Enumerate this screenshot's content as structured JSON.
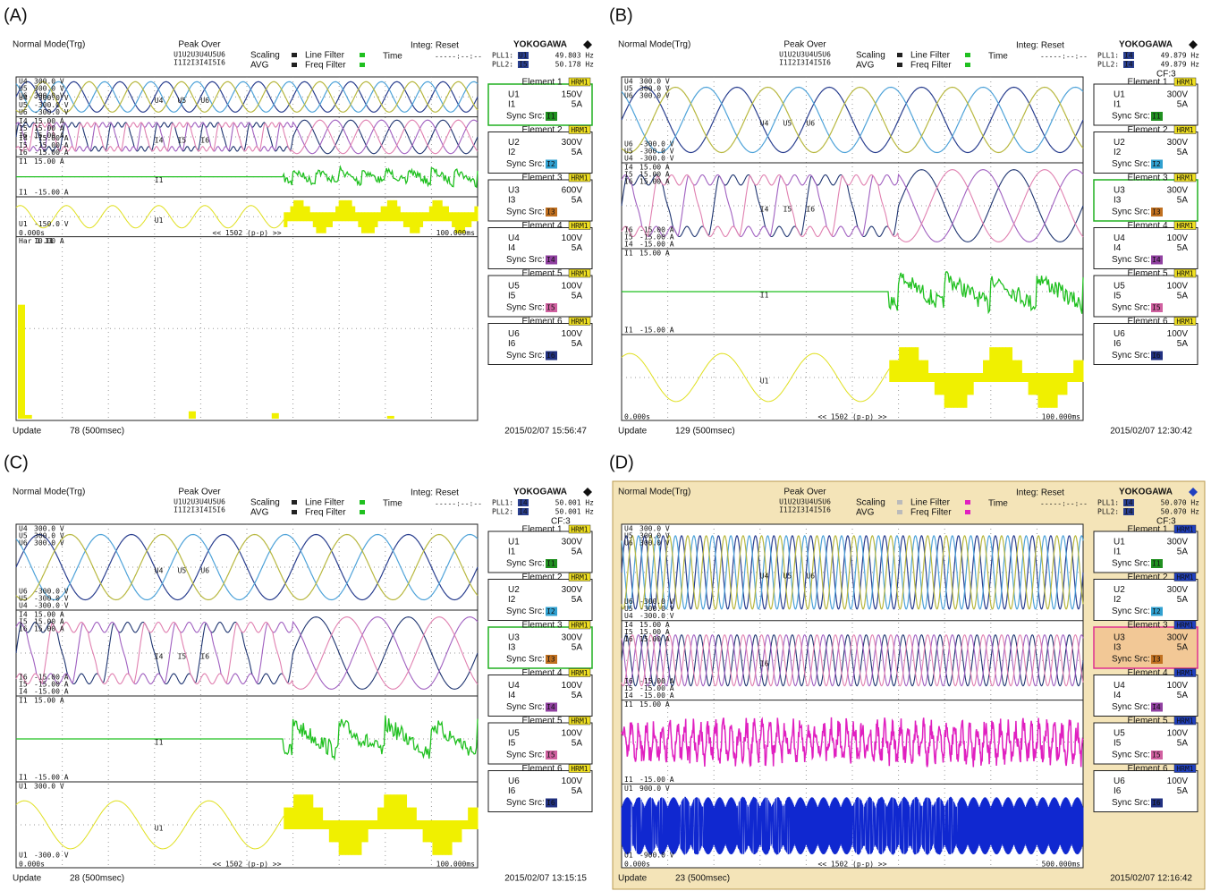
{
  "panels": [
    {
      "label": "(A)",
      "mode": "Normal Mode(Trg)",
      "peak_over": "Peak Over",
      "peak_channels": [
        "U1U2U3U4U5U6",
        "I1I2I3I4I5I6"
      ],
      "scaling": "Scaling",
      "avg": "AVG",
      "line_filter": "Line Filter",
      "freq_filter": "Freq Filter",
      "integ": "Integ: Reset",
      "time": "Time",
      "time_value": "-----:--:--",
      "brand": "YOKOGAWA",
      "pll1": "PLL1:",
      "pll1_src": "U1",
      "pll1_value": "49.803 Hz",
      "pll2": "PLL2:",
      "pll2_src": "I5",
      "pll2_value": "50.178 Hz",
      "windows": [
        {
          "top": [
            [
              "U4",
              "300.0 V"
            ],
            [
              "U5",
              "300.0 V"
            ],
            [
              "U6",
              "300.0 V"
            ]
          ],
          "bottom": [
            [
              "U4",
              "-300.0 V"
            ],
            [
              "U5",
              "-300.0 V"
            ],
            [
              "U6",
              "-300.0 V"
            ]
          ],
          "traces": [
            "U4",
            "U5",
            "U6"
          ]
        },
        {
          "top": [
            [
              "I4",
              "15.00 A"
            ],
            [
              "I5",
              "15.00 A"
            ],
            [
              "I6",
              "15.00 A"
            ]
          ],
          "bottom": [
            [
              "I4",
              "-15.00 A"
            ],
            [
              "I5",
              "-15.00 A"
            ],
            [
              "I6",
              "-15.00 A"
            ]
          ],
          "traces": [
            "I4",
            "I5",
            "I6"
          ]
        },
        {
          "top": [
            [
              "I1",
              "15.00 A"
            ]
          ],
          "bottom": [
            [
              "I1",
              "-15.00 A"
            ]
          ],
          "traces": [
            "I1"
          ]
        },
        {
          "top": [],
          "bottom": [
            [
              "U1",
              "-150.0 V"
            ]
          ],
          "traces": [
            "U1"
          ]
        },
        {
          "top": [
            [
              "Har 1 I1",
              "10.00 A"
            ]
          ],
          "bottom": [],
          "traces": []
        }
      ],
      "time_start": "0.000s",
      "pp": "<< 1502 (p-p) >>",
      "time_end": "100.000ms",
      "elements": [
        {
          "title": "Element 1",
          "badge": "HRM1",
          "u": "U1",
          "u_range": "150V",
          "i": "I1",
          "i_range": "5A",
          "sync": "Sync Src:",
          "sync_src": "I1"
        },
        {
          "title": "Element 2",
          "badge": "HRM1",
          "u": "U2",
          "u_range": "300V",
          "i": "I2",
          "i_range": "5A",
          "sync": "Sync Src:",
          "sync_src": "I2"
        },
        {
          "title": "Element 3",
          "badge": "HRM1",
          "u": "U3",
          "u_range": "600V",
          "i": "I3",
          "i_range": "5A",
          "sync": "Sync Src:",
          "sync_src": "I3"
        },
        {
          "title": "Element 4",
          "badge": "HRM1",
          "u": "U4",
          "u_range": "100V",
          "i": "I4",
          "i_range": "5A",
          "sync": "Sync Src:",
          "sync_src": "I4"
        },
        {
          "title": "Element 5",
          "badge": "HRM1",
          "u": "U5",
          "u_range": "100V",
          "i": "I5",
          "i_range": "5A",
          "sync": "Sync Src:",
          "sync_src": "I5"
        },
        {
          "title": "Element 6",
          "badge": "HRM1",
          "u": "U6",
          "u_range": "100V",
          "i": "I6",
          "i_range": "5A",
          "sync": "Sync Src:",
          "sync_src": "I6"
        }
      ],
      "update": "Update",
      "update_count": "78 (500msec)",
      "date": "2015/02/07 15:56:47"
    },
    {
      "label": "(B)",
      "mode": "Normal Mode(Trg)",
      "peak_over": "Peak Over",
      "peak_channels": [
        "U1U2U3U4U5U6",
        "I1I2I3I4I5I6"
      ],
      "scaling": "Scaling",
      "avg": "AVG",
      "line_filter": "Line Filter",
      "freq_filter": "Freq Filter",
      "integ": "Integ: Reset",
      "time": "Time",
      "time_value": "-----:--:--",
      "brand": "YOKOGAWA",
      "pll1": "PLL1:",
      "pll1_src": "I4",
      "pll1_value": "49.879 Hz",
      "pll2": "PLL2:",
      "pll2_src": "I4",
      "pll2_value": "49.879 Hz",
      "cf": "CF:3",
      "windows": [
        {
          "top": [
            [
              "U4",
              "300.0 V"
            ],
            [
              "U5",
              "300.0 V"
            ],
            [
              "U6",
              "300.0 V"
            ]
          ],
          "bottom": [
            [
              "U6",
              "-300.0 V"
            ],
            [
              "U5",
              "-300.0 V"
            ],
            [
              "U4",
              "-300.0 V"
            ]
          ],
          "traces": [
            "U4",
            "U5",
            "U6"
          ]
        },
        {
          "top": [
            [
              "I4",
              "15.00 A"
            ],
            [
              "I5",
              "15.00 A"
            ],
            [
              "I6",
              "15.00 A"
            ]
          ],
          "bottom": [
            [
              "I6",
              "-15.00 A"
            ],
            [
              "I5",
              "-15.00 A"
            ],
            [
              "I4",
              "-15.00 A"
            ]
          ],
          "traces": [
            "I4",
            "I5",
            "I6"
          ]
        },
        {
          "top": [
            [
              "I1",
              "15.00 A"
            ]
          ],
          "bottom": [
            [
              "I1",
              "-15.00 A"
            ]
          ],
          "traces": [
            "I1"
          ]
        },
        {
          "top": [],
          "bottom": [],
          "traces": [
            "U1"
          ]
        }
      ],
      "time_start": "0.000s",
      "pp": "<< 1502 (p-p) >>",
      "time_end": "100.000ms",
      "elements": [
        {
          "title": "Element 1",
          "badge": "HRM1",
          "u": "U1",
          "u_range": "300V",
          "i": "I1",
          "i_range": "5A",
          "sync": "Sync Src:",
          "sync_src": "I1"
        },
        {
          "title": "Element 2",
          "badge": "HRM1",
          "u": "U2",
          "u_range": "300V",
          "i": "I2",
          "i_range": "5A",
          "sync": "Sync Src:",
          "sync_src": "I2"
        },
        {
          "title": "Element 3",
          "badge": "HRM1",
          "u": "U3",
          "u_range": "300V",
          "i": "I3",
          "i_range": "5A",
          "sync": "Sync Src:",
          "sync_src": "I3"
        },
        {
          "title": "Element 4",
          "badge": "HRM1",
          "u": "U4",
          "u_range": "100V",
          "i": "I4",
          "i_range": "5A",
          "sync": "Sync Src:",
          "sync_src": "I4"
        },
        {
          "title": "Element 5",
          "badge": "HRM1",
          "u": "U5",
          "u_range": "100V",
          "i": "I5",
          "i_range": "5A",
          "sync": "Sync Src:",
          "sync_src": "I5"
        },
        {
          "title": "Element 6",
          "badge": "HRM1",
          "u": "U6",
          "u_range": "100V",
          "i": "I6",
          "i_range": "5A",
          "sync": "Sync Src:",
          "sync_src": "I6"
        }
      ],
      "update": "Update",
      "update_count": "129 (500msec)",
      "date": "2015/02/07 12:30:42"
    },
    {
      "label": "(C)",
      "mode": "Normal Mode(Trg)",
      "peak_over": "Peak Over",
      "peak_channels": [
        "U1U2U3U4U5U6",
        "I1I2I3I4I5I6"
      ],
      "scaling": "Scaling",
      "avg": "AVG",
      "line_filter": "Line Filter",
      "freq_filter": "Freq Filter",
      "integ": "Integ: Reset",
      "time": "Time",
      "time_value": "-----:--:--",
      "brand": "YOKOGAWA",
      "pll1": "PLL1:",
      "pll1_src": "I4",
      "pll1_value": "50.001 Hz",
      "pll2": "PLL2:",
      "pll2_src": "I4",
      "pll2_value": "50.001 Hz",
      "cf": "CF:3",
      "windows": [
        {
          "top": [
            [
              "U4",
              "300.0 V"
            ],
            [
              "U5",
              "300.0 V"
            ],
            [
              "U6",
              "300.0 V"
            ]
          ],
          "bottom": [
            [
              "U6",
              "-300.0 V"
            ],
            [
              "U5",
              "-300.0 V"
            ],
            [
              "U4",
              "-300.0 V"
            ]
          ],
          "traces": [
            "U4",
            "U5",
            "U6"
          ]
        },
        {
          "top": [
            [
              "I4",
              "15.00 A"
            ],
            [
              "I5",
              "15.00 A"
            ],
            [
              "I6",
              "15.00 A"
            ]
          ],
          "bottom": [
            [
              "I6",
              "-15.00 A"
            ],
            [
              "I5",
              "-15.00 A"
            ],
            [
              "I4",
              "-15.00 A"
            ]
          ],
          "traces": [
            "I4",
            "I5",
            "I6"
          ]
        },
        {
          "top": [
            [
              "I1",
              "15.00 A"
            ]
          ],
          "bottom": [
            [
              "I1",
              "-15.00 A"
            ]
          ],
          "traces": [
            "I1"
          ]
        },
        {
          "top": [
            [
              "U1",
              "300.0 V"
            ]
          ],
          "bottom": [
            [
              "U1",
              "-300.0 V"
            ]
          ],
          "traces": [
            "U1"
          ]
        }
      ],
      "time_start": "0.000s",
      "pp": "<< 1502 (p-p) >>",
      "time_end": "100.000ms",
      "elements": [
        {
          "title": "Element 1",
          "badge": "HRM1",
          "u": "U1",
          "u_range": "300V",
          "i": "I1",
          "i_range": "5A",
          "sync": "Sync Src:",
          "sync_src": "I1"
        },
        {
          "title": "Element 2",
          "badge": "HRM1",
          "u": "U2",
          "u_range": "300V",
          "i": "I2",
          "i_range": "5A",
          "sync": "Sync Src:",
          "sync_src": "I2"
        },
        {
          "title": "Element 3",
          "badge": "HRM1",
          "u": "U3",
          "u_range": "300V",
          "i": "I3",
          "i_range": "5A",
          "sync": "Sync Src:",
          "sync_src": "I3"
        },
        {
          "title": "Element 4",
          "badge": "HRM1",
          "u": "U4",
          "u_range": "100V",
          "i": "I4",
          "i_range": "5A",
          "sync": "Sync Src:",
          "sync_src": "I4"
        },
        {
          "title": "Element 5",
          "badge": "HRM1",
          "u": "U5",
          "u_range": "100V",
          "i": "I5",
          "i_range": "5A",
          "sync": "Sync Src:",
          "sync_src": "I5"
        },
        {
          "title": "Element 6",
          "badge": "HRM1",
          "u": "U6",
          "u_range": "100V",
          "i": "I6",
          "i_range": "5A",
          "sync": "Sync Src:",
          "sync_src": "I6"
        }
      ],
      "update": "Update",
      "update_count": "28 (500msec)",
      "date": "2015/02/07 13:15:15"
    },
    {
      "label": "(D)",
      "mode": "Normal Mode(Trg)",
      "peak_over": "Peak Over",
      "peak_channels": [
        "U1U2U3U4U5U6",
        "I1I2I3I4I5I6"
      ],
      "scaling": "Scaling",
      "avg": "AVG",
      "line_filter": "Line Filter",
      "freq_filter": "Freq Filter",
      "integ": "Integ: Reset",
      "time": "Time",
      "time_value": "-----:--:--",
      "brand": "YOKOGAWA",
      "pll1": "PLL1:",
      "pll1_src": "I4",
      "pll1_value": "50.070 Hz",
      "pll2": "PLL2:",
      "pll2_src": "I4",
      "pll2_value": "50.070 Hz",
      "cf": "CF:3",
      "windows": [
        {
          "top": [
            [
              "U4",
              "300.0 V"
            ],
            [
              "U5",
              "300.0 V"
            ],
            [
              "U6",
              "300.0 V"
            ]
          ],
          "bottom": [
            [
              "U6",
              "-300.0 V"
            ],
            [
              "U5",
              "-300.0 V"
            ],
            [
              "U4",
              "-300.0 V"
            ]
          ],
          "traces": [
            "U4",
            "U5",
            "U6"
          ]
        },
        {
          "top": [
            [
              "I4",
              "15.00 A"
            ],
            [
              "I5",
              "15.00 A"
            ],
            [
              "I6",
              "15.00 A"
            ]
          ],
          "bottom": [
            [
              "I6",
              "-15.00 A"
            ],
            [
              "I5",
              "-15.00 A"
            ],
            [
              "I4",
              "-15.00 A"
            ]
          ],
          "traces": [
            "I6"
          ]
        },
        {
          "top": [
            [
              "I1",
              "15.00 A"
            ]
          ],
          "bottom": [
            [
              "I1",
              "-15.00 A"
            ]
          ],
          "traces": []
        },
        {
          "top": [
            [
              "U1",
              "900.0 V"
            ]
          ],
          "bottom": [
            [
              "U1",
              "-900.0 V"
            ]
          ],
          "traces": []
        }
      ],
      "time_start": "0.000s",
      "pp": "<< 1502 (p-p) >>",
      "time_end": "500.000ms",
      "elements": [
        {
          "title": "Element 1",
          "badge": "HRM1",
          "u": "U1",
          "u_range": "300V",
          "i": "I1",
          "i_range": "5A",
          "sync": "Sync Src:",
          "sync_src": "I1"
        },
        {
          "title": "Element 2",
          "badge": "HRM1",
          "u": "U2",
          "u_range": "300V",
          "i": "I2",
          "i_range": "5A",
          "sync": "Sync Src:",
          "sync_src": "I2"
        },
        {
          "title": "Element 3",
          "badge": "HRM1",
          "u": "U3",
          "u_range": "300V",
          "i": "I3",
          "i_range": "5A",
          "sync": "Sync Src:",
          "sync_src": "I3"
        },
        {
          "title": "Element 4",
          "badge": "HRM1",
          "u": "U4",
          "u_range": "100V",
          "i": "I4",
          "i_range": "5A",
          "sync": "Sync Src:",
          "sync_src": "I4"
        },
        {
          "title": "Element 5",
          "badge": "HRM1",
          "u": "U5",
          "u_range": "100V",
          "i": "I5",
          "i_range": "5A",
          "sync": "Sync Src:",
          "sync_src": "I5"
        },
        {
          "title": "Element 6",
          "badge": "HRM1",
          "u": "U6",
          "u_range": "100V",
          "i": "I6",
          "i_range": "5A",
          "sync": "Sync Src:",
          "sync_src": "I6"
        }
      ],
      "update": "Update",
      "update_count": "23 (500msec)",
      "date": "2015/02/07 12:16:42"
    }
  ]
}
